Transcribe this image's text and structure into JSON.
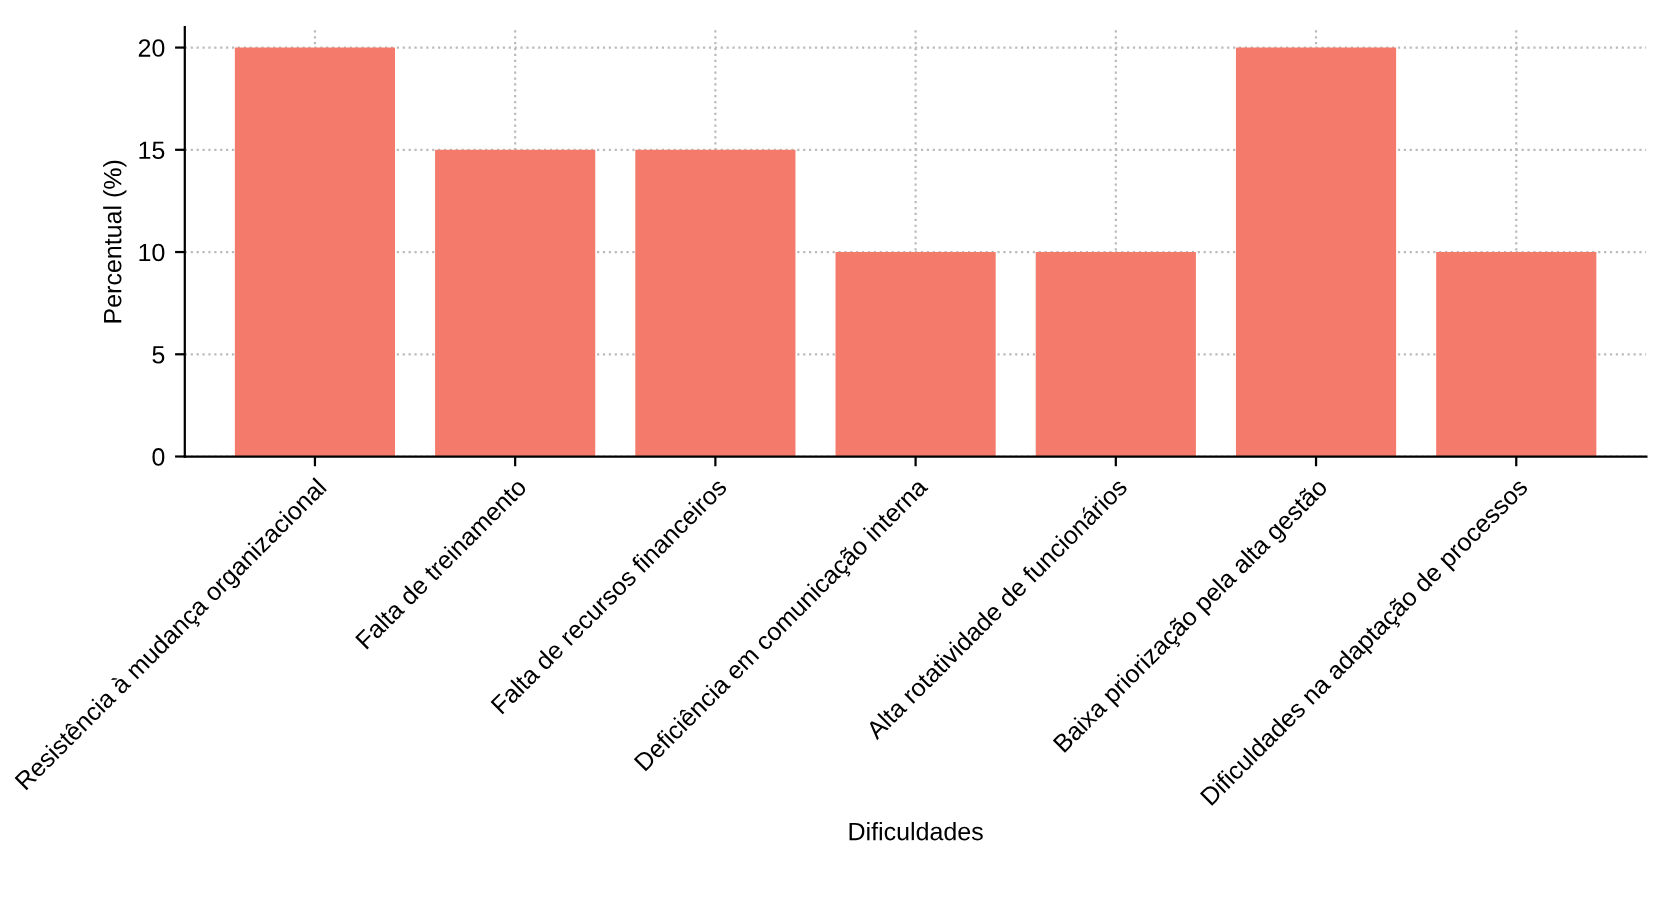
{
  "chart_data": {
    "type": "bar",
    "xlabel": "Dificuldades",
    "ylabel": "Percentual (%)",
    "categories": [
      "Resistência à mudança organizacional",
      "Falta de treinamento",
      "Falta de recursos financeiros",
      "Deficiência em comunicação interna",
      "Alta rotatividade de funcionários",
      "Baixa priorização pela alta gestão",
      "Dificuldades na adaptação de processos"
    ],
    "values": [
      20,
      15,
      15,
      10,
      10,
      20,
      10
    ],
    "color": "#f47a6b",
    "ylim": [
      0,
      21
    ],
    "yticks": [
      0,
      5,
      10,
      15,
      20
    ],
    "grid": true
  }
}
